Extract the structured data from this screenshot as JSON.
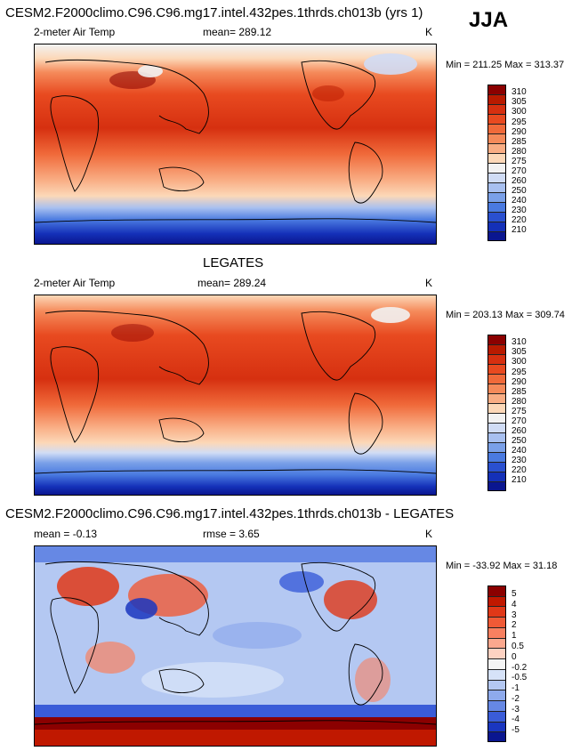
{
  "season": "JJA",
  "panels": [
    {
      "title": "CESM2.F2000climo.C96.C96.mg17.intel.432pes.1thrds.ch013b (yrs 1)",
      "variable": "2-meter Air Temp",
      "stat_text": "mean= 289.12",
      "rmse_text": "",
      "units": "K",
      "minmax": "Min = 211.25 Max = 313.37",
      "legend_labels": [
        "310",
        "305",
        "300",
        "295",
        "290",
        "285",
        "280",
        "275",
        "270",
        "260",
        "250",
        "240",
        "230",
        "220",
        "210"
      ],
      "legend_colors": [
        "#8b0000",
        "#b81a00",
        "#d63010",
        "#e84a20",
        "#f06a3a",
        "#f58a5a",
        "#f9ad84",
        "#fcd8b8",
        "#f2f2f2",
        "#d0dcf5",
        "#a8c0f0",
        "#7aa0e8",
        "#4a7ae0",
        "#2a50d0",
        "#1430b8",
        "#0a1690"
      ]
    },
    {
      "title": "LEGATES",
      "variable": "2-meter Air Temp",
      "stat_text": "mean= 289.24",
      "rmse_text": "",
      "units": "K",
      "minmax": "Min = 203.13 Max = 309.74",
      "legend_labels": [
        "310",
        "305",
        "300",
        "295",
        "290",
        "285",
        "280",
        "275",
        "270",
        "260",
        "250",
        "240",
        "230",
        "220",
        "210"
      ],
      "legend_colors": [
        "#8b0000",
        "#b81a00",
        "#d63010",
        "#e84a20",
        "#f06a3a",
        "#f58a5a",
        "#f9ad84",
        "#fcd8b8",
        "#f2f2f2",
        "#d0dcf5",
        "#a8c0f0",
        "#7aa0e8",
        "#4a7ae0",
        "#2a50d0",
        "#1430b8",
        "#0a1690"
      ]
    },
    {
      "title": "CESM2.F2000climo.C96.C96.mg17.intel.432pes.1thrds.ch013b - LEGATES",
      "variable": "",
      "stat_text": "mean =  -0.13",
      "rmse_text": "rmse =  3.65",
      "units": "K",
      "minmax": "Min = -33.92 Max =  31.18",
      "legend_labels": [
        "5",
        "4",
        "3",
        "2",
        "1",
        "0.5",
        "0",
        "-0.2",
        "-0.5",
        "-1",
        "-2",
        "-3",
        "-4",
        "-5"
      ],
      "legend_colors": [
        "#8b0000",
        "#c01800",
        "#e03818",
        "#f05a36",
        "#f88060",
        "#fba88e",
        "#fdd2c2",
        "#f4f4f4",
        "#d6e2f8",
        "#b4c8f2",
        "#8eaaec",
        "#6688e4",
        "#3a5cd8",
        "#1a36c0",
        "#0a1690"
      ]
    }
  ]
}
